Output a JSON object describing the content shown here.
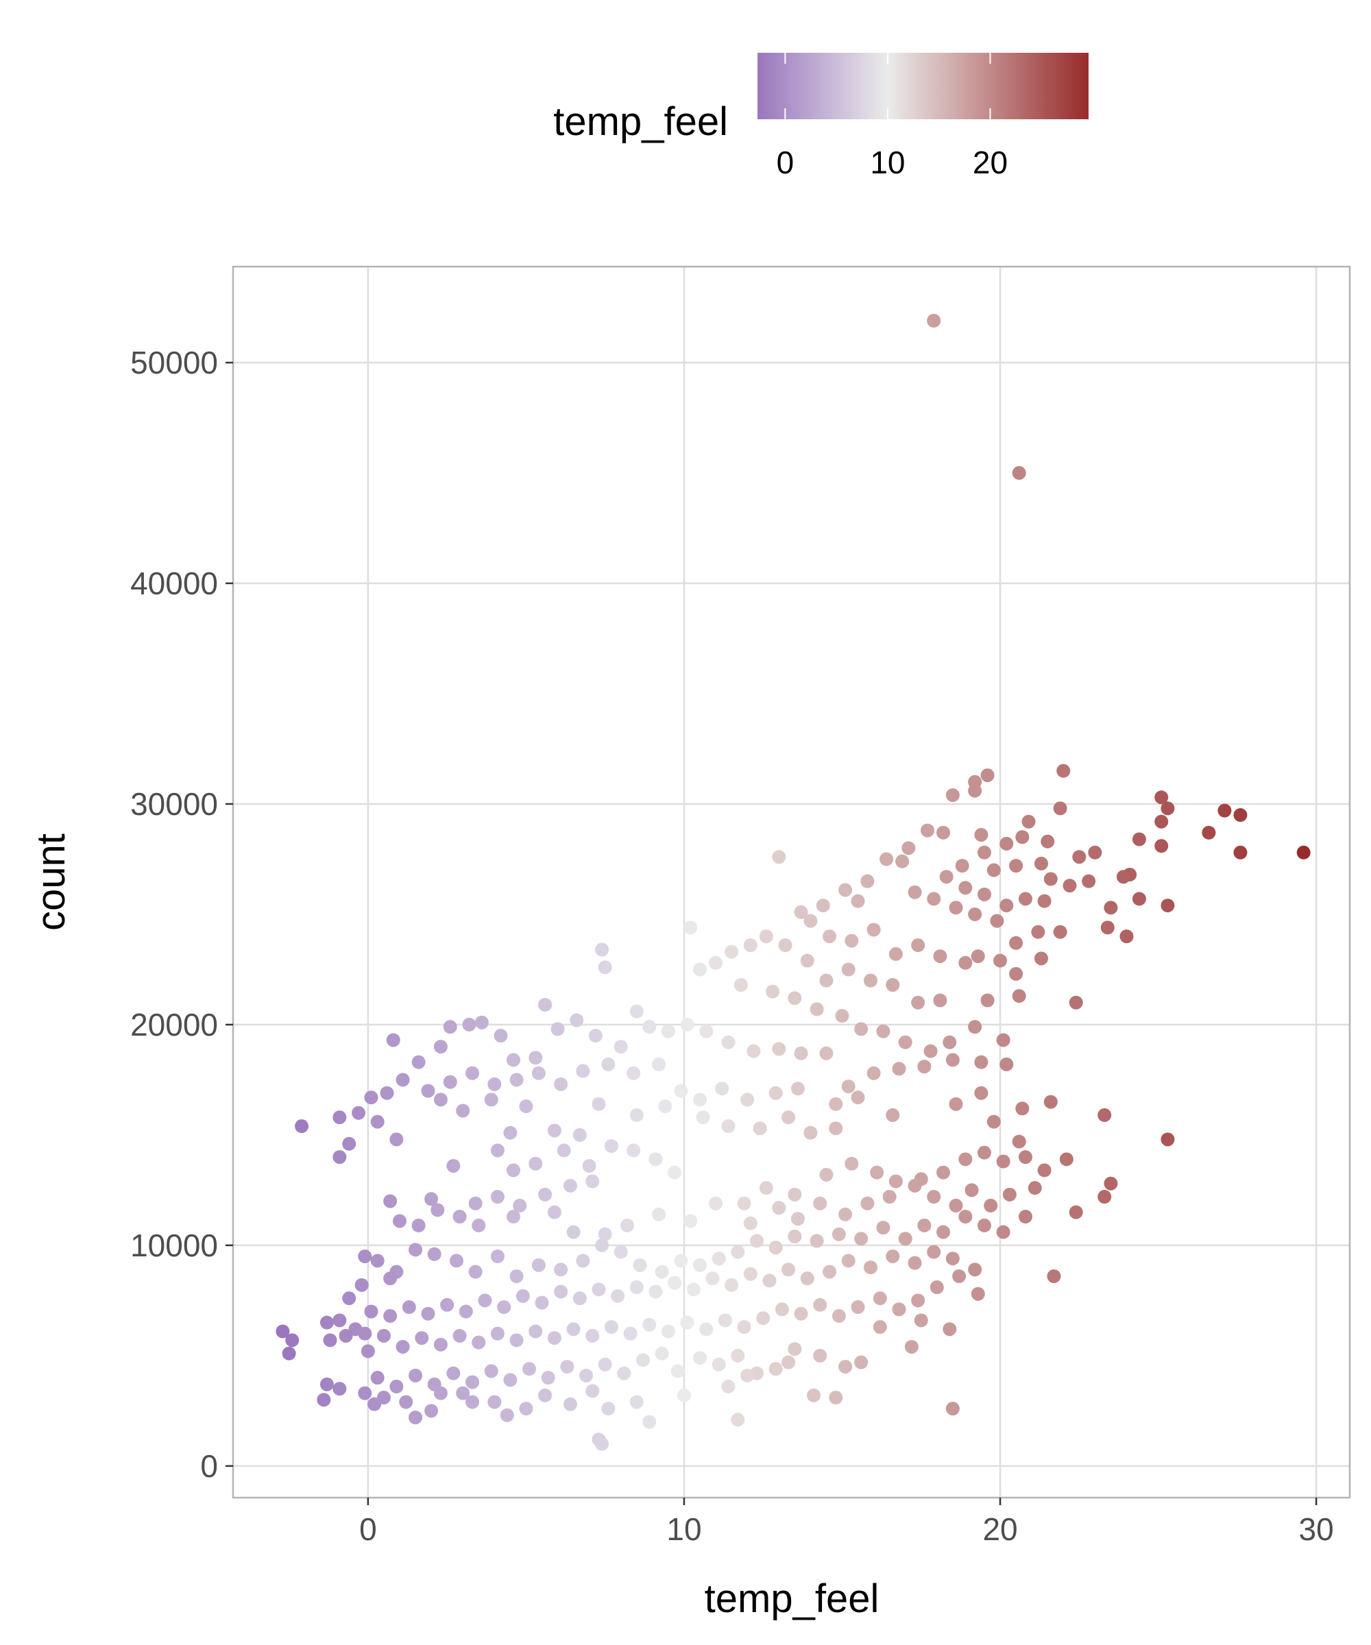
{
  "chart_data": {
    "type": "scatter",
    "title": "",
    "xlabel": "temp_feel",
    "ylabel": "count",
    "xlim": [
      -4.27,
      31.06
    ],
    "ylim": [
      -1434,
      54350
    ],
    "x_ticks": [
      0,
      10,
      20,
      30
    ],
    "x_tick_labels": [
      "0",
      "10",
      "20",
      "30"
    ],
    "y_ticks": [
      0,
      10000,
      20000,
      30000,
      40000,
      50000
    ],
    "y_tick_labels": [
      "0",
      "10000",
      "20000",
      "30000",
      "40000",
      "50000"
    ],
    "grid": true,
    "legend": {
      "title": "temp_feel",
      "placement": "top",
      "type": "colorbar",
      "range": [
        -2.7,
        29.6
      ],
      "ticks": [
        0,
        10,
        20
      ],
      "tick_labels": [
        "0",
        "10",
        "20"
      ],
      "colors": {
        "low": "#9a76bd",
        "mid": "#ebebeb",
        "high": "#982b2b"
      },
      "midpoint": 10
    },
    "points": [
      [
        17.9,
        51900
      ],
      [
        20.6,
        45000
      ],
      [
        29.6,
        27800
      ],
      [
        27.6,
        27800
      ],
      [
        27.6,
        29500
      ],
      [
        27.1,
        29700
      ],
      [
        26.6,
        28700
      ],
      [
        25.3,
        29800
      ],
      [
        25.1,
        30300
      ],
      [
        25.1,
        29200
      ],
      [
        25.1,
        28100
      ],
      [
        25.3,
        25400
      ],
      [
        25.3,
        14800
      ],
      [
        22.0,
        31500
      ],
      [
        19.6,
        31300
      ],
      [
        19.2,
        31000
      ],
      [
        19.2,
        30600
      ],
      [
        18.5,
        30400
      ],
      [
        21.9,
        29800
      ],
      [
        20.9,
        29200
      ],
      [
        17.7,
        28800
      ],
      [
        18.2,
        28700
      ],
      [
        13.0,
        27600
      ],
      [
        10.2,
        24400
      ],
      [
        7.4,
        23400
      ],
      [
        7.5,
        22600
      ],
      [
        -2.1,
        15400
      ],
      [
        -2.7,
        6100
      ],
      [
        -2.4,
        5700
      ],
      [
        -2.5,
        5100
      ],
      [
        -1.4,
        3000
      ],
      [
        -1.3,
        3700
      ],
      [
        -0.9,
        3500
      ],
      [
        18.5,
        2600
      ],
      [
        21.7,
        8600
      ],
      [
        22.4,
        11500
      ],
      [
        22.4,
        21000
      ],
      [
        23.3,
        12200
      ],
      [
        23.5,
        12800
      ],
      [
        23.3,
        15900
      ],
      [
        11.7,
        2100
      ],
      [
        7.4,
        1000
      ],
      [
        7.3,
        1200
      ],
      [
        8.9,
        2000
      ],
      [
        4.4,
        2300
      ],
      [
        1.5,
        2200
      ],
      [
        0.2,
        2800
      ],
      [
        2.0,
        2500
      ],
      [
        3.3,
        2900
      ],
      [
        24.4,
        28400
      ],
      [
        24.1,
        26800
      ],
      [
        23.9,
        26700
      ],
      [
        23.5,
        25300
      ],
      [
        23.4,
        24400
      ],
      [
        24.0,
        24000
      ],
      [
        24.4,
        25700
      ],
      [
        23.0,
        27800
      ],
      [
        22.5,
        27600
      ],
      [
        22.8,
        26500
      ],
      [
        22.2,
        26300
      ],
      [
        21.6,
        26600
      ],
      [
        21.3,
        27300
      ],
      [
        21.5,
        28300
      ],
      [
        20.7,
        28500
      ],
      [
        20.2,
        28200
      ],
      [
        20.5,
        27200
      ],
      [
        19.8,
        27000
      ],
      [
        19.5,
        27800
      ],
      [
        19.4,
        28600
      ],
      [
        18.8,
        27200
      ],
      [
        18.3,
        26700
      ],
      [
        18.9,
        26200
      ],
      [
        19.5,
        25900
      ],
      [
        20.2,
        25400
      ],
      [
        20.8,
        25700
      ],
      [
        21.4,
        25600
      ],
      [
        21.9,
        24200
      ],
      [
        21.2,
        24200
      ],
      [
        20.5,
        23700
      ],
      [
        19.9,
        24700
      ],
      [
        19.2,
        25000
      ],
      [
        18.6,
        25300
      ],
      [
        17.9,
        25700
      ],
      [
        17.3,
        26000
      ],
      [
        16.9,
        27400
      ],
      [
        16.4,
        27500
      ],
      [
        17.1,
        28000
      ],
      [
        15.8,
        26500
      ],
      [
        15.5,
        25600
      ],
      [
        15.1,
        26100
      ],
      [
        14.4,
        25400
      ],
      [
        14.0,
        24700
      ],
      [
        13.7,
        25100
      ],
      [
        14.6,
        24000
      ],
      [
        15.3,
        23800
      ],
      [
        16.0,
        24300
      ],
      [
        16.7,
        23200
      ],
      [
        17.4,
        23600
      ],
      [
        18.1,
        23100
      ],
      [
        18.9,
        22800
      ],
      [
        19.3,
        23100
      ],
      [
        20.0,
        22900
      ],
      [
        20.5,
        22300
      ],
      [
        21.3,
        23000
      ],
      [
        19.6,
        21100
      ],
      [
        20.6,
        21300
      ],
      [
        18.1,
        21100
      ],
      [
        17.4,
        21000
      ],
      [
        16.6,
        21800
      ],
      [
        15.9,
        22000
      ],
      [
        15.2,
        22500
      ],
      [
        14.5,
        22000
      ],
      [
        13.9,
        22900
      ],
      [
        13.2,
        23600
      ],
      [
        12.6,
        24000
      ],
      [
        12.1,
        23600
      ],
      [
        11.5,
        23300
      ],
      [
        11.0,
        22800
      ],
      [
        10.5,
        22500
      ],
      [
        11.8,
        21800
      ],
      [
        12.8,
        21500
      ],
      [
        13.5,
        21200
      ],
      [
        14.2,
        20700
      ],
      [
        15.0,
        20400
      ],
      [
        15.6,
        19800
      ],
      [
        16.3,
        19700
      ],
      [
        17.0,
        19200
      ],
      [
        17.8,
        18800
      ],
      [
        18.4,
        19200
      ],
      [
        19.2,
        19900
      ],
      [
        20.1,
        19300
      ],
      [
        20.2,
        18200
      ],
      [
        19.4,
        18300
      ],
      [
        18.5,
        18400
      ],
      [
        17.6,
        18100
      ],
      [
        16.8,
        18000
      ],
      [
        16.0,
        17800
      ],
      [
        15.2,
        17200
      ],
      [
        14.5,
        18700
      ],
      [
        13.7,
        18700
      ],
      [
        13.0,
        18900
      ],
      [
        12.2,
        18800
      ],
      [
        11.4,
        19200
      ],
      [
        10.7,
        19700
      ],
      [
        10.1,
        20000
      ],
      [
        9.5,
        19700
      ],
      [
        8.9,
        19900
      ],
      [
        8.5,
        20600
      ],
      [
        8.0,
        19000
      ],
      [
        7.2,
        19500
      ],
      [
        6.6,
        20200
      ],
      [
        6.0,
        19800
      ],
      [
        5.6,
        20900
      ],
      [
        5.3,
        18500
      ],
      [
        4.6,
        18400
      ],
      [
        4.2,
        19500
      ],
      [
        3.6,
        20100
      ],
      [
        3.2,
        20000
      ],
      [
        2.6,
        19900
      ],
      [
        2.3,
        19000
      ],
      [
        1.6,
        18300
      ],
      [
        0.8,
        19300
      ],
      [
        1.1,
        17500
      ],
      [
        1.9,
        17000
      ],
      [
        2.6,
        17400
      ],
      [
        3.3,
        17800
      ],
      [
        4.0,
        17300
      ],
      [
        4.7,
        17500
      ],
      [
        5.4,
        17800
      ],
      [
        6.1,
        17300
      ],
      [
        6.8,
        17900
      ],
      [
        7.6,
        18200
      ],
      [
        8.4,
        17800
      ],
      [
        9.2,
        18200
      ],
      [
        9.9,
        17000
      ],
      [
        10.5,
        16600
      ],
      [
        11.2,
        17100
      ],
      [
        12.0,
        16600
      ],
      [
        12.9,
        16900
      ],
      [
        13.6,
        17100
      ],
      [
        14.8,
        16400
      ],
      [
        15.5,
        16700
      ],
      [
        16.6,
        15900
      ],
      [
        0.1,
        16700
      ],
      [
        0.6,
        16900
      ],
      [
        -0.3,
        16000
      ],
      [
        -0.9,
        15800
      ],
      [
        -0.6,
        14600
      ],
      [
        -0.9,
        14000
      ],
      [
        0.3,
        15600
      ],
      [
        0.9,
        14800
      ],
      [
        2.3,
        16600
      ],
      [
        3.0,
        16100
      ],
      [
        3.9,
        16600
      ],
      [
        4.5,
        15100
      ],
      [
        5.0,
        16300
      ],
      [
        5.9,
        15200
      ],
      [
        6.7,
        15000
      ],
      [
        7.3,
        16400
      ],
      [
        8.5,
        15900
      ],
      [
        9.4,
        16300
      ],
      [
        10.6,
        15800
      ],
      [
        11.4,
        15400
      ],
      [
        12.4,
        15300
      ],
      [
        13.3,
        15800
      ],
      [
        14.0,
        15100
      ],
      [
        14.8,
        15300
      ],
      [
        2.7,
        13600
      ],
      [
        4.1,
        14300
      ],
      [
        4.6,
        13400
      ],
      [
        5.3,
        13700
      ],
      [
        6.2,
        14300
      ],
      [
        7.0,
        13600
      ],
      [
        7.7,
        14500
      ],
      [
        8.4,
        14300
      ],
      [
        9.1,
        13900
      ],
      [
        9.7,
        13300
      ],
      [
        4.1,
        12200
      ],
      [
        4.8,
        11800
      ],
      [
        5.6,
        12300
      ],
      [
        6.4,
        12700
      ],
      [
        7.1,
        12900
      ],
      [
        3.4,
        11900
      ],
      [
        2.0,
        12100
      ],
      [
        0.7,
        12000
      ],
      [
        1.0,
        11100
      ],
      [
        1.6,
        10900
      ],
      [
        2.2,
        11600
      ],
      [
        2.9,
        11300
      ],
      [
        3.5,
        10900
      ],
      [
        4.6,
        11300
      ],
      [
        5.9,
        11500
      ],
      [
        6.5,
        10600
      ],
      [
        7.5,
        10500
      ],
      [
        8.2,
        10900
      ],
      [
        9.2,
        11400
      ],
      [
        10.2,
        11100
      ],
      [
        11.0,
        11900
      ],
      [
        11.9,
        11900
      ],
      [
        12.6,
        12600
      ],
      [
        13.5,
        12300
      ],
      [
        14.5,
        13200
      ],
      [
        15.3,
        13700
      ],
      [
        16.1,
        13300
      ],
      [
        16.7,
        12900
      ],
      [
        17.5,
        13000
      ],
      [
        18.2,
        13300
      ],
      [
        18.9,
        13900
      ],
      [
        19.5,
        14200
      ],
      [
        20.1,
        13800
      ],
      [
        20.8,
        14000
      ],
      [
        21.4,
        13400
      ],
      [
        22.1,
        13900
      ],
      [
        21.6,
        16500
      ],
      [
        20.7,
        16200
      ],
      [
        19.4,
        16900
      ],
      [
        18.6,
        16400
      ],
      [
        19.8,
        15600
      ],
      [
        20.6,
        14700
      ],
      [
        21.1,
        12600
      ],
      [
        20.3,
        12300
      ],
      [
        19.7,
        11800
      ],
      [
        19.1,
        12500
      ],
      [
        18.6,
        11800
      ],
      [
        17.9,
        12200
      ],
      [
        17.3,
        12700
      ],
      [
        16.5,
        12200
      ],
      [
        15.8,
        11900
      ],
      [
        15.1,
        11400
      ],
      [
        14.3,
        11900
      ],
      [
        13.6,
        11200
      ],
      [
        13.0,
        11700
      ],
      [
        12.1,
        11000
      ],
      [
        18.9,
        11300
      ],
      [
        19.5,
        10900
      ],
      [
        20.1,
        10600
      ],
      [
        20.8,
        11300
      ],
      [
        18.2,
        10600
      ],
      [
        17.6,
        10900
      ],
      [
        17.0,
        10300
      ],
      [
        16.3,
        10800
      ],
      [
        15.6,
        10300
      ],
      [
        14.9,
        10500
      ],
      [
        14.2,
        10200
      ],
      [
        13.5,
        10400
      ],
      [
        12.9,
        9900
      ],
      [
        12.3,
        10200
      ],
      [
        11.7,
        9700
      ],
      [
        11.1,
        9400
      ],
      [
        10.5,
        9100
      ],
      [
        9.9,
        9300
      ],
      [
        9.3,
        8800
      ],
      [
        8.6,
        9100
      ],
      [
        8.0,
        9700
      ],
      [
        7.4,
        10000
      ],
      [
        6.8,
        9300
      ],
      [
        6.1,
        8900
      ],
      [
        5.4,
        9100
      ],
      [
        4.7,
        8600
      ],
      [
        4.1,
        9500
      ],
      [
        3.4,
        8800
      ],
      [
        2.8,
        9300
      ],
      [
        2.1,
        9600
      ],
      [
        1.5,
        9800
      ],
      [
        0.9,
        8800
      ],
      [
        0.3,
        9300
      ],
      [
        -0.1,
        9500
      ],
      [
        -0.2,
        8200
      ],
      [
        0.7,
        8500
      ],
      [
        18.5,
        9400
      ],
      [
        17.9,
        9700
      ],
      [
        17.3,
        9200
      ],
      [
        16.6,
        9500
      ],
      [
        15.9,
        9000
      ],
      [
        15.2,
        9300
      ],
      [
        14.6,
        8800
      ],
      [
        13.9,
        8500
      ],
      [
        13.3,
        8900
      ],
      [
        12.7,
        8400
      ],
      [
        12.1,
        8700
      ],
      [
        11.5,
        8200
      ],
      [
        10.9,
        8500
      ],
      [
        10.3,
        8000
      ],
      [
        9.7,
        8300
      ],
      [
        9.1,
        7900
      ],
      [
        8.5,
        8100
      ],
      [
        7.9,
        7700
      ],
      [
        7.3,
        8000
      ],
      [
        6.7,
        7600
      ],
      [
        6.1,
        7900
      ],
      [
        5.5,
        7400
      ],
      [
        4.9,
        7700
      ],
      [
        4.3,
        7200
      ],
      [
        3.7,
        7500
      ],
      [
        3.1,
        7000
      ],
      [
        2.5,
        7300
      ],
      [
        1.9,
        6900
      ],
      [
        1.3,
        7200
      ],
      [
        0.7,
        6800
      ],
      [
        0.1,
        7000
      ],
      [
        -0.6,
        7600
      ],
      [
        -0.9,
        6600
      ],
      [
        -1.3,
        6500
      ],
      [
        -0.4,
        6200
      ],
      [
        19.2,
        8900
      ],
      [
        18.7,
        8600
      ],
      [
        18.0,
        8100
      ],
      [
        17.4,
        7500
      ],
      [
        16.8,
        7100
      ],
      [
        16.2,
        7600
      ],
      [
        15.5,
        7200
      ],
      [
        14.9,
        6800
      ],
      [
        14.3,
        7300
      ],
      [
        13.7,
        6900
      ],
      [
        13.1,
        7100
      ],
      [
        12.5,
        6700
      ],
      [
        11.9,
        6300
      ],
      [
        11.3,
        6600
      ],
      [
        10.7,
        6200
      ],
      [
        10.1,
        6500
      ],
      [
        9.5,
        6100
      ],
      [
        8.9,
        6400
      ],
      [
        8.3,
        6000
      ],
      [
        7.7,
        6300
      ],
      [
        7.1,
        5900
      ],
      [
        6.5,
        6200
      ],
      [
        5.9,
        5800
      ],
      [
        5.3,
        6100
      ],
      [
        4.7,
        5700
      ],
      [
        4.1,
        6000
      ],
      [
        3.5,
        5600
      ],
      [
        2.9,
        5900
      ],
      [
        2.3,
        5500
      ],
      [
        1.7,
        5800
      ],
      [
        1.1,
        5400
      ],
      [
        0.5,
        5900
      ],
      [
        -0.1,
        6000
      ],
      [
        -0.7,
        5900
      ],
      [
        -1.2,
        5700
      ],
      [
        0.0,
        5200
      ],
      [
        19.3,
        7800
      ],
      [
        18.4,
        6200
      ],
      [
        17.5,
        6600
      ],
      [
        17.2,
        5400
      ],
      [
        16.2,
        6300
      ],
      [
        15.6,
        4700
      ],
      [
        15.1,
        4500
      ],
      [
        14.3,
        5000
      ],
      [
        13.5,
        5300
      ],
      [
        12.9,
        4400
      ],
      [
        12.3,
        4200
      ],
      [
        11.7,
        5000
      ],
      [
        11.1,
        4600
      ],
      [
        10.5,
        4900
      ],
      [
        9.8,
        4300
      ],
      [
        9.3,
        5100
      ],
      [
        8.7,
        4800
      ],
      [
        8.1,
        4200
      ],
      [
        7.5,
        4600
      ],
      [
        6.9,
        4100
      ],
      [
        6.3,
        4500
      ],
      [
        5.7,
        4000
      ],
      [
        5.1,
        4400
      ],
      [
        4.5,
        3900
      ],
      [
        3.9,
        4300
      ],
      [
        3.3,
        3800
      ],
      [
        2.7,
        4200
      ],
      [
        2.1,
        3700
      ],
      [
        1.5,
        4100
      ],
      [
        0.9,
        3600
      ],
      [
        0.3,
        4000
      ],
      [
        -0.1,
        3300
      ],
      [
        0.5,
        3100
      ],
      [
        1.2,
        2900
      ],
      [
        2.3,
        3300
      ],
      [
        3.0,
        3300
      ],
      [
        4.0,
        2900
      ],
      [
        5.0,
        2600
      ],
      [
        5.6,
        3200
      ],
      [
        6.4,
        2800
      ],
      [
        7.1,
        3400
      ],
      [
        7.6,
        2600
      ],
      [
        8.5,
        2900
      ],
      [
        10.0,
        3200
      ],
      [
        11.4,
        3600
      ],
      [
        12.0,
        4100
      ],
      [
        14.1,
        3200
      ],
      [
        14.8,
        3100
      ],
      [
        13.3,
        4700
      ]
    ]
  }
}
